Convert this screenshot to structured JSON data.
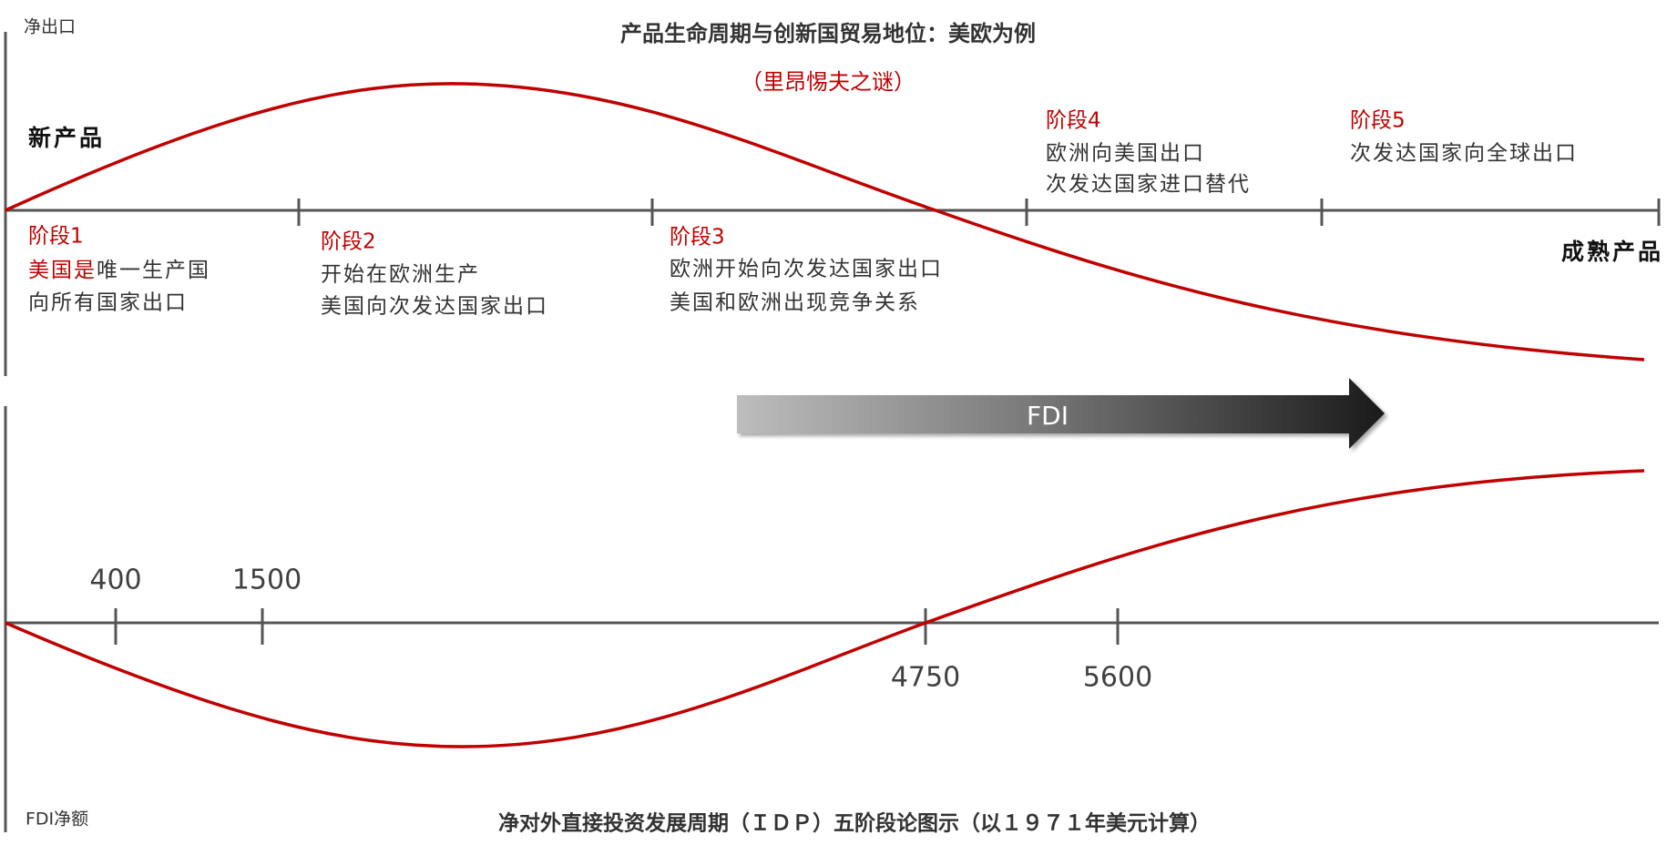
{
  "header": {
    "y_axis_label": "净出口",
    "title": "产品生命周期与创新国贸易地位：美欧为例",
    "subtitle": "（里昂惕夫之谜）"
  },
  "product_labels": {
    "start": "新产品",
    "end": "成熟产品"
  },
  "stages": [
    {
      "label": "阶段1",
      "lead": "美国是",
      "lines": [
        "唯一生产国",
        "向所有国家出口"
      ]
    },
    {
      "label": "阶段2",
      "lines": [
        "开始在欧洲生产",
        "美国向次发达国家出口"
      ]
    },
    {
      "label": "阶段3",
      "lines": [
        "欧洲开始向次发达国家出口",
        "美国和欧洲出现竞争关系"
      ]
    },
    {
      "label": "阶段4",
      "lines": [
        "欧洲向美国出口",
        "次发达国家进口替代"
      ]
    },
    {
      "label": "阶段5",
      "lines": [
        "次发达国家向全球出口"
      ]
    }
  ],
  "fdi_arrow": {
    "label": "FDI"
  },
  "idp": {
    "y_axis_label": "FDI净额",
    "thresholds": [
      400,
      1500,
      4750,
      5600
    ],
    "caption": "净对外直接投资发展周期（ＩＤＰ）五阶段论图示（以１９７１年美元计算）"
  }
}
